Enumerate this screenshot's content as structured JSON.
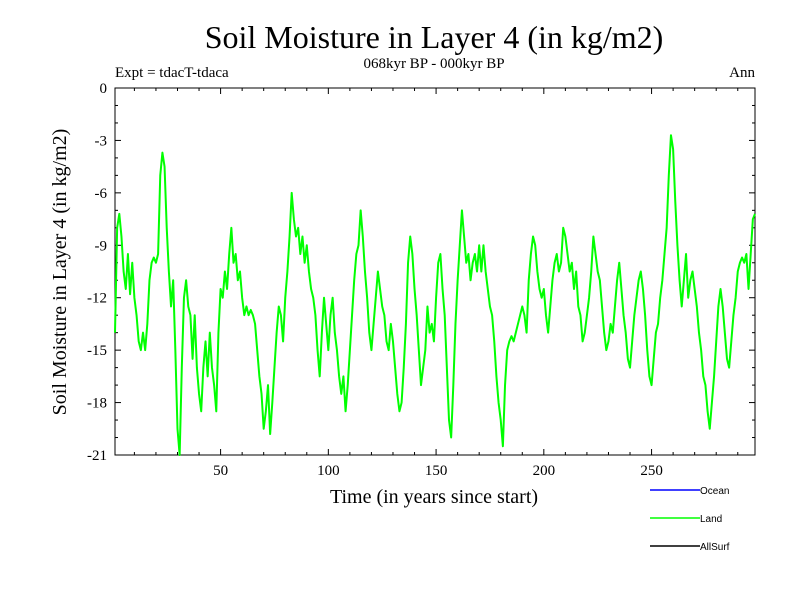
{
  "chart_data": {
    "type": "line",
    "title": "Soil Moisture in Layer 4 (in kg/m2)",
    "subtitle": "068kyr BP - 000kyr BP",
    "annotation_left": "Expt = tdacT-tdaca",
    "annotation_right": "Ann",
    "xlabel": "Time (in years since start)",
    "ylabel": "Soil Moisture in Layer 4 (in kg/m2)",
    "xlim": [
      1,
      298
    ],
    "ylim": [
      -21,
      0
    ],
    "x_ticks": [
      50,
      100,
      150,
      200,
      250
    ],
    "y_ticks": [
      0,
      -3,
      -6,
      -9,
      -12,
      -15,
      -18,
      -21
    ],
    "legend": [
      {
        "name": "Ocean",
        "color": "#0000ff"
      },
      {
        "name": "Land",
        "color": "#00ff00"
      },
      {
        "name": "AllSurf",
        "color": "#000000"
      }
    ],
    "series": [
      {
        "name": "Land",
        "color": "#00ff00",
        "x_start": 1,
        "x_step": 1,
        "values": [
          -14.0,
          -8.0,
          -7.2,
          -8.5,
          -10.5,
          -11.5,
          -9.5,
          -11.8,
          -10.0,
          -12.0,
          -13.0,
          -14.5,
          -15.0,
          -14.0,
          -15.0,
          -13.5,
          -11.0,
          -10.0,
          -9.7,
          -10.0,
          -9.5,
          -5.0,
          -3.7,
          -4.5,
          -8.0,
          -10.5,
          -12.5,
          -11.0,
          -15.0,
          -19.5,
          -21.0,
          -16.0,
          -12.0,
          -11.0,
          -12.5,
          -13.0,
          -15.5,
          -13.0,
          -16.0,
          -17.5,
          -18.5,
          -16.0,
          -14.5,
          -16.5,
          -14.0,
          -16.0,
          -17.0,
          -18.5,
          -14.0,
          -11.5,
          -12.0,
          -10.5,
          -11.5,
          -9.5,
          -8.0,
          -10.0,
          -9.5,
          -11.0,
          -10.5,
          -12.0,
          -13.0,
          -12.5,
          -13.0,
          -12.7,
          -13.0,
          -13.5,
          -15.0,
          -16.5,
          -17.5,
          -19.5,
          -18.5,
          -17.0,
          -19.8,
          -18.0,
          -16.0,
          -14.0,
          -12.5,
          -13.0,
          -14.5,
          -12.0,
          -10.5,
          -8.5,
          -6.0,
          -7.5,
          -8.5,
          -8.0,
          -9.5,
          -8.5,
          -10.0,
          -9.0,
          -10.5,
          -11.5,
          -12.0,
          -13.0,
          -15.0,
          -16.5,
          -14.0,
          -12.0,
          -13.5,
          -15.0,
          -13.0,
          -12.0,
          -14.0,
          -15.0,
          -16.5,
          -17.5,
          -16.5,
          -18.5,
          -17.0,
          -15.0,
          -13.0,
          -11.0,
          -9.5,
          -9.0,
          -7.0,
          -8.5,
          -10.5,
          -12.0,
          -14.0,
          -15.0,
          -13.5,
          -12.0,
          -10.5,
          -11.5,
          -12.5,
          -13.0,
          -14.5,
          -15.0,
          -13.5,
          -14.5,
          -16.0,
          -17.5,
          -18.5,
          -18.0,
          -16.0,
          -13.5,
          -10.0,
          -8.5,
          -9.5,
          -11.5,
          -13.0,
          -15.0,
          -17.0,
          -16.0,
          -15.0,
          -12.5,
          -14.0,
          -13.5,
          -14.5,
          -12.0,
          -10.0,
          -9.5,
          -11.5,
          -13.0,
          -16.0,
          -19.0,
          -20.0,
          -17.0,
          -13.5,
          -11.0,
          -9.0,
          -7.0,
          -8.5,
          -10.0,
          -9.5,
          -11.0,
          -10.0,
          -9.5,
          -10.5,
          -9.0,
          -10.5,
          -9.0,
          -10.5,
          -11.5,
          -12.5,
          -13.0,
          -14.5,
          -16.5,
          -18.0,
          -19.0,
          -20.5,
          -17.0,
          -15.0,
          -14.5,
          -14.2,
          -14.5,
          -14.0,
          -13.5,
          -13.0,
          -12.5,
          -13.0,
          -14.0,
          -11.0,
          -9.5,
          -8.5,
          -9.0,
          -10.5,
          -11.5,
          -12.0,
          -11.5,
          -13.0,
          -14.0,
          -12.5,
          -11.0,
          -10.0,
          -9.5,
          -10.5,
          -10.0,
          -8.0,
          -8.5,
          -9.5,
          -10.5,
          -10.0,
          -11.5,
          -10.5,
          -12.5,
          -13.0,
          -14.5,
          -14.0,
          -13.0,
          -12.0,
          -10.5,
          -8.5,
          -9.5,
          -10.5,
          -11.0,
          -12.5,
          -14.0,
          -15.0,
          -14.5,
          -13.5,
          -14.0,
          -12.5,
          -11.0,
          -10.0,
          -11.5,
          -13.0,
          -14.0,
          -15.5,
          -16.0,
          -14.5,
          -13.0,
          -12.0,
          -11.0,
          -10.5,
          -11.5,
          -13.0,
          -15.0,
          -16.5,
          -17.0,
          -15.5,
          -14.0,
          -13.5,
          -12.0,
          -11.0,
          -9.5,
          -8.0,
          -5.0,
          -2.7,
          -3.5,
          -6.5,
          -9.0,
          -11.0,
          -12.5,
          -11.0,
          -9.5,
          -12.0,
          -11.0,
          -10.5,
          -11.5,
          -12.5,
          -14.0,
          -15.0,
          -16.5,
          -17.0,
          -18.5,
          -19.5,
          -18.0,
          -16.5,
          -14.5,
          -12.5,
          -11.5,
          -12.5,
          -14.0,
          -15.5,
          -16.0,
          -14.5,
          -13.0,
          -12.0,
          -10.5,
          -10.0,
          -9.7,
          -10.0,
          -9.5,
          -11.5,
          -9.5,
          -7.5,
          -7.2
        ]
      }
    ]
  }
}
